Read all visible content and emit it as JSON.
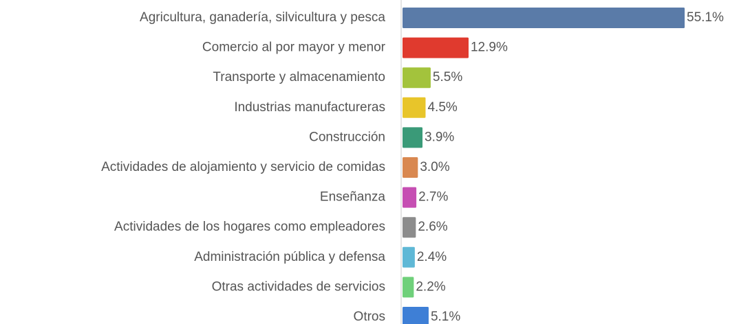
{
  "chart_data": {
    "type": "bar",
    "orientation": "horizontal",
    "categories": [
      "Agricultura, ganadería, silvicultura y pesca",
      "Comercio al por mayor y menor",
      "Transporte y almacenamiento",
      "Industrias manufactureras",
      "Construcción",
      "Actividades de alojamiento y servicio de comidas",
      "Enseñanza",
      "Actividades de los hogares como empleadores",
      "Administración pública y defensa",
      "Otras actividades de servicios",
      "Otros"
    ],
    "values": [
      55.1,
      12.9,
      5.5,
      4.5,
      3.9,
      3.0,
      2.7,
      2.6,
      2.4,
      2.2,
      5.1
    ],
    "value_labels": [
      "55.1%",
      "12.9%",
      "5.5%",
      "4.5%",
      "3.9%",
      "3.0%",
      "2.7%",
      "2.6%",
      "2.4%",
      "2.2%",
      "5.1%"
    ],
    "colors": [
      "#5a7ba8",
      "#e03a2e",
      "#a3c33c",
      "#e8c52a",
      "#3a9a78",
      "#d98850",
      "#c64fb3",
      "#8c8c8c",
      "#5fb8d6",
      "#6fd07a",
      "#3e7fd6"
    ],
    "xlim": [
      0,
      55.1
    ],
    "grid": false,
    "legend": "none"
  }
}
